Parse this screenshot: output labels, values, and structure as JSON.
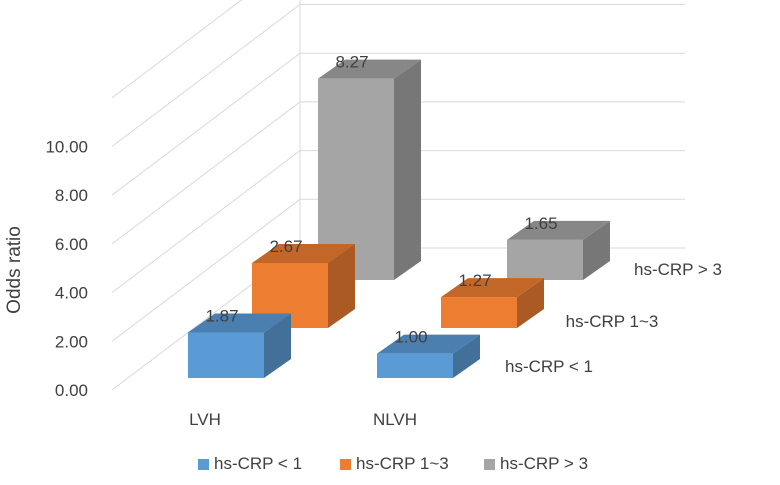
{
  "chart_data": {
    "type": "bar",
    "subtype": "3d-column",
    "categories": [
      "LVH",
      "NLVH"
    ],
    "series": [
      {
        "name": "hs-CRP < 1",
        "values": [
          1.87,
          1.0
        ],
        "labels": [
          "1.87",
          "1.00"
        ],
        "color": "#5B9BD5"
      },
      {
        "name": "hs-CRP 1~3",
        "values": [
          2.67,
          1.27
        ],
        "labels": [
          "2.67",
          "1.27"
        ],
        "color": "#ED7D31"
      },
      {
        "name": "hs-CRP > 3",
        "values": [
          8.27,
          1.65
        ],
        "labels": [
          "8.27",
          "1.65"
        ],
        "color": "#A5A5A5"
      }
    ],
    "ylabel": "Odds ratio",
    "xlabel": "",
    "yticks": [
      "0.00",
      "2.00",
      "4.00",
      "6.00",
      "8.00",
      "10.00"
    ],
    "ylim": [
      0,
      10
    ],
    "grid": true,
    "legend_position": "bottom"
  }
}
